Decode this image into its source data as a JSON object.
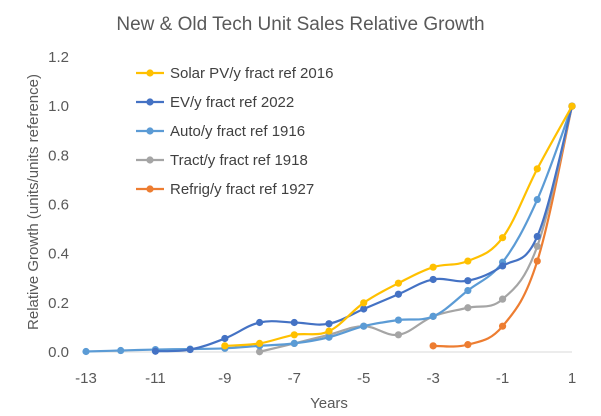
{
  "chart_data": {
    "type": "line",
    "title": "New & Old Tech Unit Sales Relative Growth",
    "xlabel": "Years",
    "ylabel": "Relative Growth (units/units reference)",
    "xlim": [
      -13,
      1
    ],
    "ylim": [
      0,
      1.2
    ],
    "xticks": [
      -13,
      -11,
      -9,
      -7,
      -5,
      -3,
      -1,
      1
    ],
    "yticks": [
      "0.0",
      "0.2",
      "0.4",
      "0.6",
      "0.8",
      "1.0",
      "1.2"
    ],
    "grid": false,
    "legend": "top-left",
    "series": [
      {
        "name": "Solar PV/y fract ref 2016",
        "color": "#FFC000",
        "x": [
          -9,
          -8,
          -7,
          -6,
          -5,
          -4,
          -3,
          -2,
          -1,
          0,
          1
        ],
        "y": [
          0.025,
          0.035,
          0.07,
          0.085,
          0.2,
          0.28,
          0.345,
          0.37,
          0.465,
          0.745,
          1.0
        ]
      },
      {
        "name": "EV/y fract ref 2022",
        "color": "#4472C4",
        "x": [
          -11,
          -10,
          -9,
          -8,
          -7,
          -6,
          -5,
          -4,
          -3,
          -2,
          -1,
          0,
          1
        ],
        "y": [
          0.003,
          0.01,
          0.055,
          0.12,
          0.12,
          0.115,
          0.175,
          0.235,
          0.295,
          0.29,
          0.35,
          0.47,
          1.0
        ]
      },
      {
        "name": "Auto/y fract ref 1916",
        "color": "#5B9BD5",
        "x": [
          -13,
          -12,
          -11,
          -10,
          -9,
          -8,
          -7,
          -6,
          -5,
          -4,
          -3,
          -2,
          -1,
          0,
          1
        ],
        "y": [
          0.002,
          0.006,
          0.01,
          0.012,
          0.015,
          0.025,
          0.035,
          0.06,
          0.105,
          0.13,
          0.145,
          0.25,
          0.365,
          0.62,
          1.0
        ]
      },
      {
        "name": "Tract/y fract ref 1918",
        "color": "#A5A5A5",
        "x": [
          -8,
          -7,
          -6,
          -5,
          -4,
          -3,
          -2,
          -1,
          0,
          1
        ],
        "y": [
          0.001,
          0.035,
          0.07,
          0.105,
          0.07,
          0.145,
          0.18,
          0.215,
          0.43,
          1.0
        ]
      },
      {
        "name": "Refrig/y fract ref 1927",
        "color": "#ED7D31",
        "x": [
          -3,
          -2,
          -1,
          0,
          1
        ],
        "y": [
          0.025,
          0.03,
          0.105,
          0.37,
          1.0
        ]
      }
    ]
  }
}
